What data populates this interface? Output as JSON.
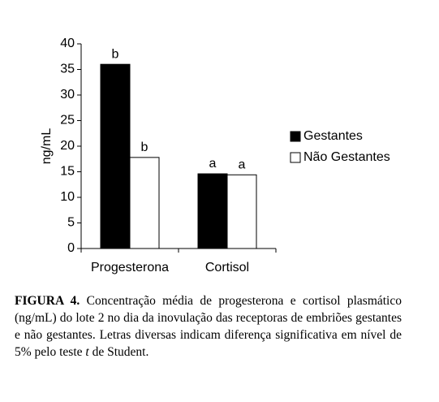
{
  "chart_data": {
    "type": "bar",
    "y_label": "ng/mL",
    "categories": [
      "Progesterona",
      "Cortisol"
    ],
    "series": [
      {
        "name": "Gestantes",
        "color": "#000000",
        "values": [
          36,
          14.6
        ],
        "annotations": [
          "b",
          "a"
        ]
      },
      {
        "name": "Não Gestantes",
        "color": "#ffffff",
        "values": [
          17.8,
          14.4
        ],
        "annotations": [
          "b",
          "a"
        ]
      }
    ],
    "ylim": [
      0,
      40
    ],
    "yticks": [
      0,
      5,
      10,
      15,
      20,
      25,
      30,
      35,
      40
    ],
    "legend": "right",
    "caption_label": "FIGURA 4.",
    "caption_text": "Concentração média de progesterona e cortisol plasmático (ng/mL) do lote 2 no dia da inovulação das receptoras de embriões gestantes e não gestantes. Letras diversas indicam diferença significativa em nível de 5% pelo teste",
    "caption_italic": "t",
    "caption_end": "de Student."
  }
}
